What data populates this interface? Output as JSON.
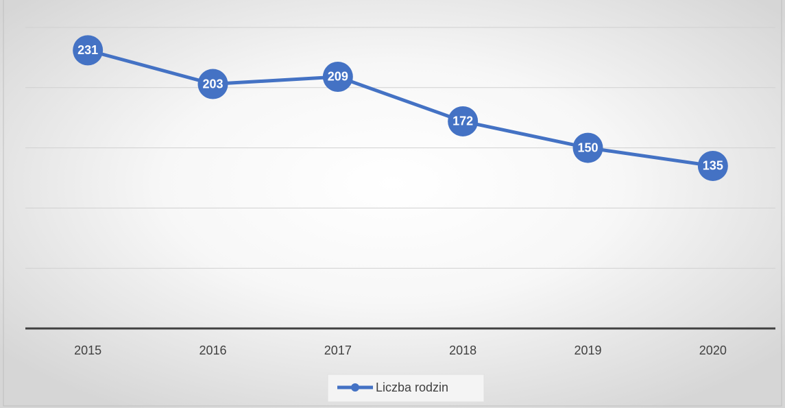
{
  "chart_data": {
    "type": "line",
    "categories": [
      "2015",
      "2016",
      "2017",
      "2018",
      "2019",
      "2020"
    ],
    "series": [
      {
        "name": "Liczba rodzin",
        "color": "#4472c4",
        "values": [
          231,
          203,
          209,
          172,
          150,
          135
        ]
      }
    ],
    "ylim": [
      0,
      250
    ],
    "yticks": [
      0,
      50,
      100,
      150,
      200,
      250
    ],
    "grid": true,
    "legend": "bottom"
  }
}
